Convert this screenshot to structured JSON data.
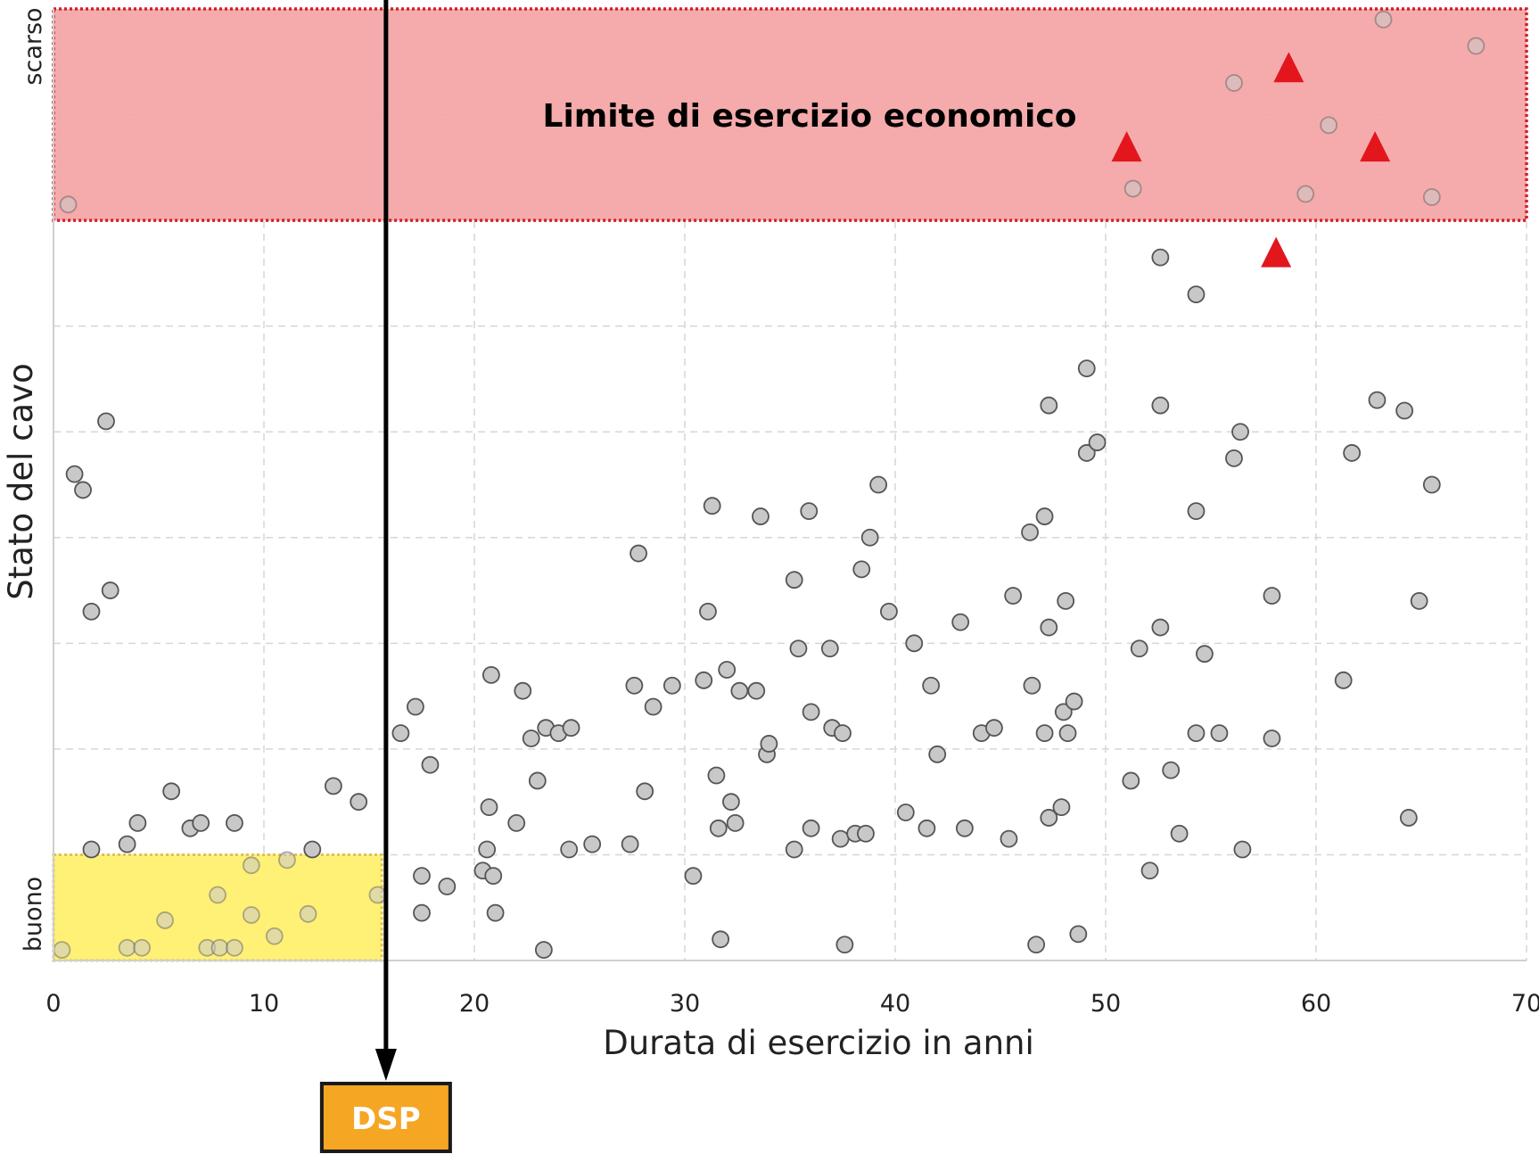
{
  "chart_data": {
    "type": "scatter",
    "title": "",
    "xlabel": "Durata di esercizio in anni",
    "ylabel": "Stato del cavo",
    "xlim": [
      0,
      70
    ],
    "ylim": [
      0,
      9
    ],
    "x_ticks": [
      "0",
      "10",
      "20",
      "30",
      "40",
      "50",
      "60",
      "70"
    ],
    "y_category_labels": {
      "low": "buono",
      "high": "scarso"
    },
    "grid": "dashed",
    "colors": {
      "point_fill": "#c8c8c8",
      "point_stroke": "#555555",
      "triangle": "#e3161e",
      "red_zone": "#f4a7a7",
      "red_zone_border": "#d0202a",
      "yellow_zone": "#fff176",
      "yellow_zone_border": "#e2c24a",
      "dsp_fill": "#f5a623",
      "dsp_stroke": "#1a1a1a"
    },
    "zones": {
      "economic_limit": {
        "label": "Limite di esercizio economico",
        "x_range": [
          0,
          70
        ],
        "y_range": [
          7,
          9
        ]
      },
      "good_zone": {
        "label": "",
        "x_range": [
          0,
          15.6
        ],
        "y_range": [
          0,
          1
        ]
      }
    },
    "marker_line": {
      "label": "DSP",
      "x": 15.8
    },
    "series": [
      {
        "marker": "circle",
        "points": [
          [
            0.7,
            7.15
          ],
          [
            1.0,
            4.6
          ],
          [
            1.4,
            4.45
          ],
          [
            1.8,
            3.3
          ],
          [
            2.5,
            5.1
          ],
          [
            2.7,
            3.5
          ],
          [
            1.8,
            1.05
          ],
          [
            3.5,
            1.1
          ],
          [
            4.0,
            1.3
          ],
          [
            5.6,
            1.6
          ],
          [
            6.5,
            1.25
          ],
          [
            7.0,
            1.3
          ],
          [
            8.6,
            1.3
          ],
          [
            13.3,
            1.65
          ],
          [
            14.5,
            1.5
          ],
          [
            12.3,
            1.05
          ],
          [
            0.4,
            0.1
          ],
          [
            3.5,
            0.12
          ],
          [
            4.2,
            0.12
          ],
          [
            5.3,
            0.38
          ],
          [
            7.3,
            0.12
          ],
          [
            7.8,
            0.62
          ],
          [
            7.9,
            0.12
          ],
          [
            8.6,
            0.12
          ],
          [
            9.4,
            0.9
          ],
          [
            9.4,
            0.43
          ],
          [
            10.5,
            0.23
          ],
          [
            11.1,
            0.95
          ],
          [
            12.1,
            0.44
          ],
          [
            15.4,
            0.62
          ],
          [
            16.5,
            2.15
          ],
          [
            17.2,
            2.4
          ],
          [
            17.5,
            0.8
          ],
          [
            17.5,
            0.45
          ],
          [
            17.9,
            1.85
          ],
          [
            18.7,
            0.7
          ],
          [
            20.4,
            0.85
          ],
          [
            20.6,
            1.05
          ],
          [
            20.7,
            1.45
          ],
          [
            20.9,
            0.8
          ],
          [
            20.8,
            2.7
          ],
          [
            21.0,
            0.45
          ],
          [
            22.0,
            1.3
          ],
          [
            22.3,
            2.55
          ],
          [
            22.7,
            2.1
          ],
          [
            23.0,
            1.7
          ],
          [
            23.3,
            0.1
          ],
          [
            23.4,
            2.2
          ],
          [
            24.0,
            2.15
          ],
          [
            24.5,
            1.05
          ],
          [
            24.6,
            2.2
          ],
          [
            25.6,
            1.1
          ],
          [
            27.4,
            1.1
          ],
          [
            27.6,
            2.6
          ],
          [
            27.8,
            3.85
          ],
          [
            28.1,
            1.6
          ],
          [
            28.5,
            2.4
          ],
          [
            29.4,
            2.6
          ],
          [
            30.4,
            0.8
          ],
          [
            30.9,
            2.65
          ],
          [
            31.1,
            3.3
          ],
          [
            31.3,
            4.3
          ],
          [
            31.5,
            1.75
          ],
          [
            31.6,
            1.25
          ],
          [
            31.7,
            0.2
          ],
          [
            32.0,
            2.75
          ],
          [
            32.2,
            1.5
          ],
          [
            32.4,
            1.3
          ],
          [
            32.6,
            2.55
          ],
          [
            33.4,
            2.55
          ],
          [
            33.6,
            4.2
          ],
          [
            33.9,
            1.95
          ],
          [
            34.0,
            2.05
          ],
          [
            35.2,
            3.6
          ],
          [
            35.2,
            1.05
          ],
          [
            35.4,
            2.95
          ],
          [
            35.9,
            4.25
          ],
          [
            36.0,
            2.35
          ],
          [
            36.0,
            1.25
          ],
          [
            36.9,
            2.95
          ],
          [
            37.0,
            2.2
          ],
          [
            37.4,
            1.15
          ],
          [
            37.5,
            2.15
          ],
          [
            37.6,
            0.15
          ],
          [
            38.1,
            1.2
          ],
          [
            38.4,
            3.7
          ],
          [
            38.6,
            1.2
          ],
          [
            38.8,
            4.0
          ],
          [
            39.2,
            4.5
          ],
          [
            39.7,
            3.3
          ],
          [
            40.5,
            1.4
          ],
          [
            40.9,
            3.0
          ],
          [
            41.5,
            1.25
          ],
          [
            41.7,
            2.6
          ],
          [
            42.0,
            1.95
          ],
          [
            43.1,
            3.2
          ],
          [
            43.3,
            1.25
          ],
          [
            44.1,
            2.15
          ],
          [
            44.7,
            2.2
          ],
          [
            45.4,
            1.15
          ],
          [
            45.6,
            3.45
          ],
          [
            46.4,
            4.05
          ],
          [
            46.5,
            2.6
          ],
          [
            46.7,
            0.15
          ],
          [
            47.1,
            4.2
          ],
          [
            47.1,
            2.15
          ],
          [
            47.3,
            1.35
          ],
          [
            47.3,
            3.15
          ],
          [
            47.3,
            5.25
          ],
          [
            47.9,
            1.45
          ],
          [
            48.0,
            2.35
          ],
          [
            48.1,
            3.4
          ],
          [
            48.2,
            2.15
          ],
          [
            48.5,
            2.45
          ],
          [
            48.7,
            0.25
          ],
          [
            49.1,
            4.8
          ],
          [
            49.1,
            5.6
          ],
          [
            49.6,
            4.9
          ],
          [
            51.2,
            1.7
          ],
          [
            51.6,
            2.95
          ],
          [
            52.1,
            0.85
          ],
          [
            52.6,
            3.15
          ],
          [
            52.6,
            5.25
          ],
          [
            52.6,
            6.65
          ],
          [
            53.1,
            1.8
          ],
          [
            53.5,
            1.2
          ],
          [
            54.3,
            4.25
          ],
          [
            54.3,
            2.15
          ],
          [
            54.3,
            6.3
          ],
          [
            54.7,
            2.9
          ],
          [
            55.4,
            2.15
          ],
          [
            56.1,
            4.75
          ],
          [
            56.4,
            5.0
          ],
          [
            56.5,
            1.05
          ],
          [
            57.9,
            2.1
          ],
          [
            57.9,
            3.45
          ],
          [
            61.3,
            2.65
          ],
          [
            61.7,
            4.8
          ],
          [
            62.9,
            5.3
          ],
          [
            64.2,
            5.2
          ],
          [
            64.4,
            1.35
          ],
          [
            64.9,
            3.4
          ],
          [
            65.5,
            4.5
          ],
          [
            51.3,
            7.3
          ],
          [
            56.1,
            8.3
          ],
          [
            59.5,
            7.25
          ],
          [
            60.6,
            7.9
          ],
          [
            63.2,
            8.9
          ],
          [
            65.5,
            7.22
          ],
          [
            67.6,
            8.65
          ]
        ]
      },
      {
        "marker": "triangle",
        "points": [
          [
            51.0,
            7.7
          ],
          [
            58.7,
            8.45
          ],
          [
            62.8,
            7.7
          ],
          [
            58.1,
            6.7
          ]
        ]
      }
    ]
  }
}
